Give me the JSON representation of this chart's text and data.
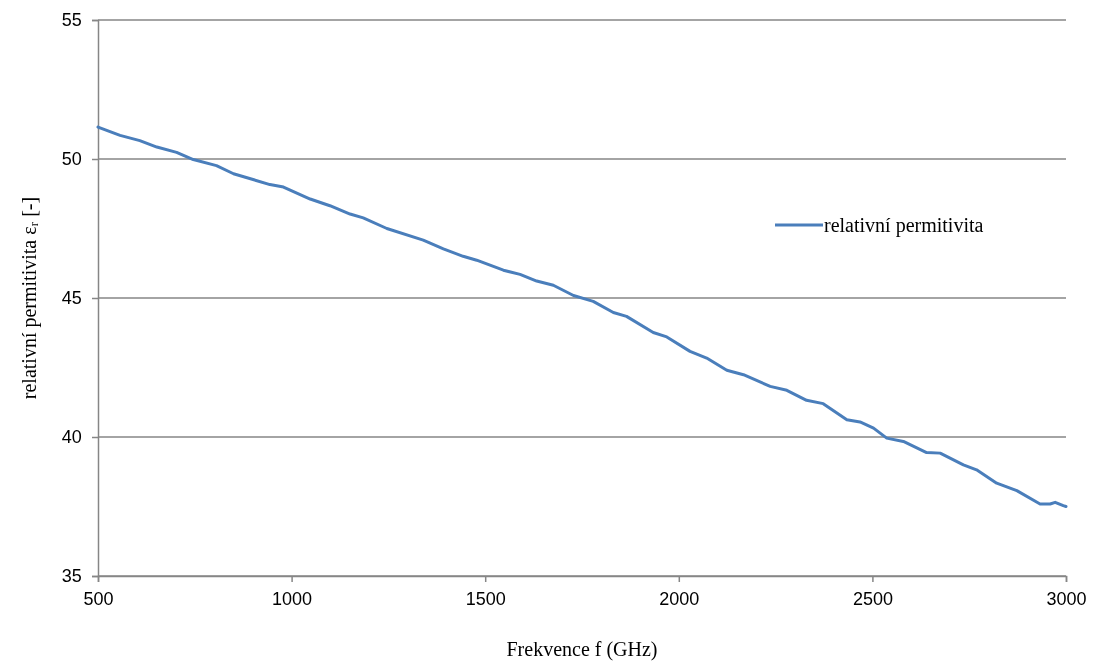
{
  "chart_data": {
    "type": "line",
    "xlabel": "Frekvence f (GHz)",
    "ylabel": "relativní permitivita εᵣ  [-]",
    "xlim": [
      500,
      3000
    ],
    "xticks": [
      500,
      1000,
      1500,
      2000,
      2500,
      3000
    ],
    "ylim": [
      35,
      55
    ],
    "yticks": [
      35,
      40,
      45,
      50,
      55
    ],
    "grid": "y",
    "legend": "right",
    "marker": "none",
    "line_style": "solid",
    "series": [
      {
        "name": "relativní permitivita",
        "color": "#4a7ebb",
        "x": [
          500,
          557,
          608,
          652,
          703,
          746,
          806,
          850,
          944,
          979,
          1048,
          1099,
          1151,
          1185,
          1246,
          1340,
          1392,
          1443,
          1478,
          1547,
          1590,
          1633,
          1676,
          1728,
          1779,
          1831,
          1865,
          1934,
          1969,
          2029,
          2072,
          2124,
          2167,
          2236,
          2279,
          2330,
          2373,
          2434,
          2468,
          2503,
          2537,
          2580,
          2640,
          2675,
          2735,
          2769,
          2821,
          2873,
          2933,
          2959,
          2972,
          2993,
          3000
        ],
        "values": [
          51.15,
          50.85,
          50.66,
          50.43,
          50.24,
          49.98,
          49.76,
          49.47,
          49.08,
          48.99,
          48.56,
          48.32,
          48.02,
          47.88,
          47.5,
          47.08,
          46.77,
          46.5,
          46.36,
          46.0,
          45.85,
          45.61,
          45.46,
          45.09,
          44.88,
          44.48,
          44.34,
          43.76,
          43.6,
          43.08,
          42.84,
          42.4,
          42.24,
          41.82,
          41.68,
          41.32,
          41.2,
          40.62,
          40.54,
          40.32,
          39.96,
          39.84,
          39.44,
          39.42,
          39.0,
          38.82,
          38.34,
          38.07,
          37.59,
          37.59,
          37.65,
          37.53,
          37.5
        ]
      }
    ]
  }
}
